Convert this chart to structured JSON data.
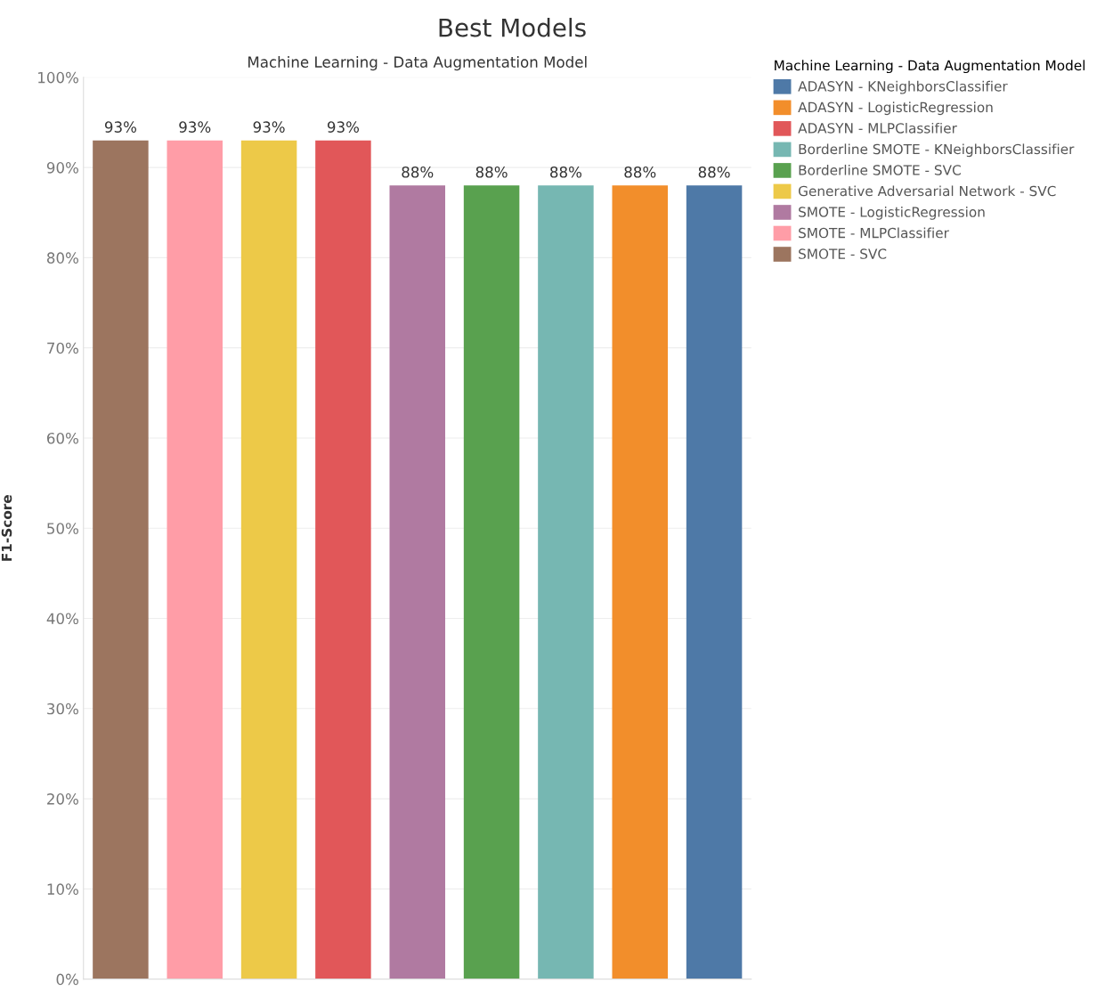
{
  "chart_data": {
    "type": "bar",
    "title": "Best Models",
    "xlabel": "Machine Learning - Data Augmentation Model",
    "ylabel": "F1-Score",
    "legend_title": "Machine Learning - Data Augmentation Model",
    "categories": [
      null,
      null,
      null,
      null,
      null,
      null,
      null,
      null,
      null
    ],
    "series": [
      {
        "name": "ADASYN - KNeighborsClassifier",
        "color": "#4e79a7",
        "values": [
          null,
          null,
          null,
          null,
          null,
          null,
          null,
          null,
          88
        ],
        "value_labels": [
          null,
          null,
          null,
          null,
          null,
          null,
          null,
          null,
          "88%"
        ]
      },
      {
        "name": "ADASYN - LogisticRegression",
        "color": "#f28e2b",
        "values": [
          null,
          null,
          null,
          null,
          null,
          null,
          null,
          88,
          null
        ],
        "value_labels": [
          null,
          null,
          null,
          null,
          null,
          null,
          null,
          "88%",
          null
        ]
      },
      {
        "name": "ADASYN - MLPClassifier",
        "color": "#e15759",
        "values": [
          null,
          null,
          null,
          93,
          null,
          null,
          null,
          null,
          null
        ],
        "value_labels": [
          null,
          null,
          null,
          "93%",
          null,
          null,
          null,
          null,
          null
        ]
      },
      {
        "name": "Borderline SMOTE - KNeighborsClassifier",
        "color": "#76b7b2",
        "values": [
          null,
          null,
          null,
          null,
          null,
          null,
          88,
          null,
          null
        ],
        "value_labels": [
          null,
          null,
          null,
          null,
          null,
          null,
          "88%",
          null,
          null
        ]
      },
      {
        "name": "Borderline SMOTE - SVC",
        "color": "#59a14f",
        "values": [
          null,
          null,
          null,
          null,
          null,
          88,
          null,
          null,
          null
        ],
        "value_labels": [
          null,
          null,
          null,
          null,
          null,
          "88%",
          null,
          null,
          null
        ]
      },
      {
        "name": "Generative Adversarial Network - SVC",
        "color": "#edc948",
        "values": [
          null,
          null,
          93,
          null,
          null,
          null,
          null,
          null,
          null
        ],
        "value_labels": [
          null,
          null,
          "93%",
          null,
          null,
          null,
          null,
          null,
          null
        ]
      },
      {
        "name": "SMOTE - LogisticRegression",
        "color": "#b07aa1",
        "values": [
          null,
          null,
          null,
          null,
          88,
          null,
          null,
          null,
          null
        ],
        "value_labels": [
          null,
          null,
          null,
          null,
          "88%",
          null,
          null,
          null,
          null
        ]
      },
      {
        "name": "SMOTE - MLPClassifier",
        "color": "#ff9da7",
        "values": [
          null,
          93,
          null,
          null,
          null,
          null,
          null,
          null,
          null
        ],
        "value_labels": [
          null,
          "93%",
          null,
          null,
          null,
          null,
          null,
          null,
          null
        ]
      },
      {
        "name": "SMOTE - SVC",
        "color": "#9c755f",
        "values": [
          93,
          null,
          null,
          null,
          null,
          null,
          null,
          null,
          null
        ],
        "value_labels": [
          "93%",
          null,
          null,
          null,
          null,
          null,
          null,
          null,
          null
        ]
      }
    ],
    "ylim": [
      0,
      100
    ],
    "yticks": [
      {
        "value": 0,
        "label": "0%"
      },
      {
        "value": 10,
        "label": "10%"
      },
      {
        "value": 20,
        "label": "20%"
      },
      {
        "value": 30,
        "label": "30%"
      },
      {
        "value": 40,
        "label": "40%"
      },
      {
        "value": 50,
        "label": "50%"
      },
      {
        "value": 60,
        "label": "60%"
      },
      {
        "value": 70,
        "label": "70%"
      },
      {
        "value": 80,
        "label": "80%"
      },
      {
        "value": 90,
        "label": "90%"
      },
      {
        "value": 100,
        "label": "100%"
      }
    ],
    "grid": "y",
    "legend": "right",
    "tick_labels": "y"
  }
}
